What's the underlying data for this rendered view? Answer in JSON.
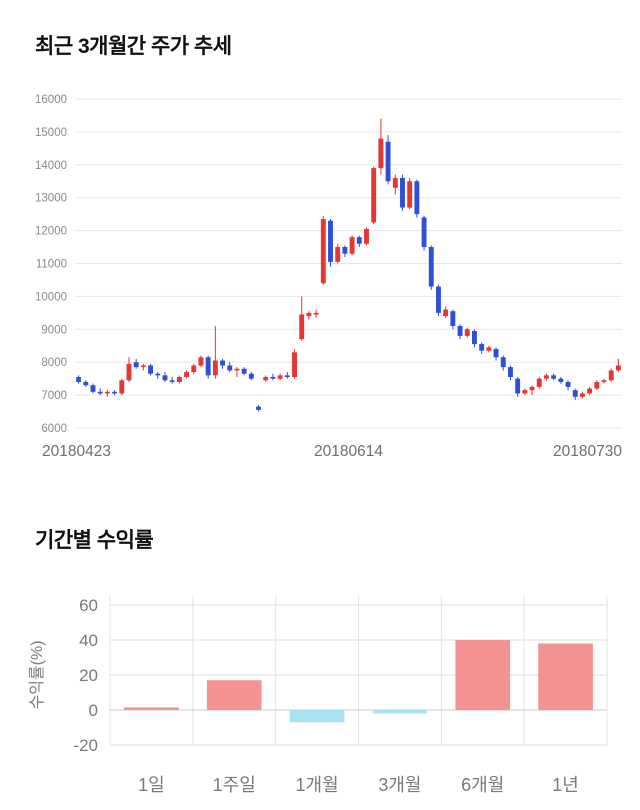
{
  "chart_data": [
    {
      "type": "candlestick",
      "title": "최근 3개월간 주가 추세",
      "x_ticks": [
        "20180423",
        "20180614",
        "20180730"
      ],
      "y_ticks": [
        6000,
        7000,
        8000,
        9000,
        10000,
        11000,
        12000,
        13000,
        14000,
        15000,
        16000
      ],
      "ylim": [
        6000,
        16000
      ],
      "up_color": "#e53535",
      "down_color": "#2e4fd8",
      "grid_color": "#e7e7e7",
      "tick_color": "#8a8a8a",
      "xlabel_color": "#6e6e6e",
      "candles": [
        [
          7550,
          7600,
          7350,
          7400
        ],
        [
          7400,
          7450,
          7250,
          7300
        ],
        [
          7300,
          7350,
          7050,
          7100
        ],
        [
          7100,
          7200,
          7000,
          7050
        ],
        [
          7050,
          7150,
          6950,
          7100
        ],
        [
          7100,
          7150,
          7000,
          7050
        ],
        [
          7050,
          7500,
          7000,
          7450
        ],
        [
          7450,
          8150,
          7400,
          7950
        ],
        [
          8000,
          8100,
          7800,
          7850
        ],
        [
          7850,
          7950,
          7750,
          7900
        ],
        [
          7900,
          7950,
          7600,
          7650
        ],
        [
          7650,
          7700,
          7500,
          7600
        ],
        [
          7600,
          7700,
          7400,
          7450
        ],
        [
          7450,
          7550,
          7350,
          7400
        ],
        [
          7400,
          7600,
          7350,
          7550
        ],
        [
          7550,
          7750,
          7500,
          7700
        ],
        [
          7700,
          7950,
          7650,
          7900
        ],
        [
          7900,
          8200,
          7850,
          8150
        ],
        [
          8150,
          8200,
          7500,
          7600
        ],
        [
          7600,
          9100,
          7500,
          8050
        ],
        [
          8050,
          8100,
          7800,
          7900
        ],
        [
          7900,
          8000,
          7700,
          7750
        ],
        [
          7750,
          7850,
          7550,
          7800
        ],
        [
          7800,
          7850,
          7600,
          7650
        ],
        [
          7650,
          7700,
          7450,
          7500
        ],
        [
          6650,
          6700,
          6500,
          6550
        ],
        [
          7450,
          7600,
          7400,
          7550
        ],
        [
          7550,
          7650,
          7450,
          7500
        ],
        [
          7500,
          7650,
          7450,
          7600
        ],
        [
          7600,
          7700,
          7500,
          7550
        ],
        [
          7550,
          8400,
          7500,
          8300
        ],
        [
          8700,
          10000,
          8650,
          9450
        ],
        [
          9400,
          9550,
          9300,
          9500
        ],
        [
          9450,
          9600,
          9350,
          9500
        ],
        [
          10400,
          12450,
          10350,
          12350
        ],
        [
          12300,
          12350,
          10900,
          11050
        ],
        [
          11050,
          11600,
          11000,
          11500
        ],
        [
          11500,
          11550,
          11200,
          11300
        ],
        [
          11300,
          11850,
          11250,
          11800
        ],
        [
          11800,
          11850,
          11500,
          11600
        ],
        [
          11600,
          12100,
          11550,
          12050
        ],
        [
          12250,
          13950,
          12200,
          13900
        ],
        [
          13900,
          15400,
          13700,
          14800
        ],
        [
          14700,
          14900,
          13400,
          13500
        ],
        [
          13300,
          13700,
          13100,
          13600
        ],
        [
          13600,
          13700,
          12600,
          12700
        ],
        [
          12700,
          13600,
          12650,
          13500
        ],
        [
          13500,
          13550,
          12400,
          12500
        ],
        [
          12400,
          12450,
          11400,
          11500
        ],
        [
          11500,
          11550,
          10200,
          10300
        ],
        [
          10300,
          10350,
          9400,
          9500
        ],
        [
          9400,
          9700,
          9350,
          9600
        ],
        [
          9550,
          9600,
          9000,
          9100
        ],
        [
          9100,
          9150,
          8700,
          8800
        ],
        [
          8800,
          9050,
          8750,
          9000
        ],
        [
          8950,
          9000,
          8450,
          8550
        ],
        [
          8550,
          8600,
          8250,
          8350
        ],
        [
          8350,
          8500,
          8300,
          8450
        ],
        [
          8400,
          8450,
          8050,
          8150
        ],
        [
          8150,
          8200,
          7750,
          7850
        ],
        [
          7850,
          7900,
          7450,
          7550
        ],
        [
          7500,
          7550,
          6950,
          7050
        ],
        [
          7050,
          7200,
          7000,
          7150
        ],
        [
          7150,
          7300,
          7000,
          7250
        ],
        [
          7250,
          7550,
          7200,
          7500
        ],
        [
          7500,
          7650,
          7450,
          7600
        ],
        [
          7600,
          7650,
          7450,
          7500
        ],
        [
          7500,
          7550,
          7350,
          7400
        ],
        [
          7400,
          7450,
          7150,
          7250
        ],
        [
          7150,
          7200,
          6850,
          6950
        ],
        [
          6950,
          7100,
          6900,
          7050
        ],
        [
          7050,
          7250,
          7000,
          7200
        ],
        [
          7200,
          7450,
          7150,
          7400
        ],
        [
          7400,
          7500,
          7350,
          7450
        ],
        [
          7450,
          7800,
          7400,
          7750
        ],
        [
          7750,
          8100,
          7700,
          7900
        ]
      ]
    },
    {
      "type": "bar",
      "title": "기간별 수익률",
      "ylabel": "수익률(%)",
      "categories": [
        "1일",
        "1주일",
        "1개월",
        "3개월",
        "6개월",
        "1년"
      ],
      "values": [
        1.5,
        17,
        -7,
        -2,
        40,
        38
      ],
      "y_ticks": [
        60,
        40,
        20,
        0,
        -20
      ],
      "ylim": [
        -20,
        60
      ],
      "positive_color": "#f59292",
      "negative_color": "#a9e3f2",
      "grid_color": "#dedede",
      "zero_line_color": "#cccccc",
      "tick_color": "#7a7a7a"
    }
  ]
}
